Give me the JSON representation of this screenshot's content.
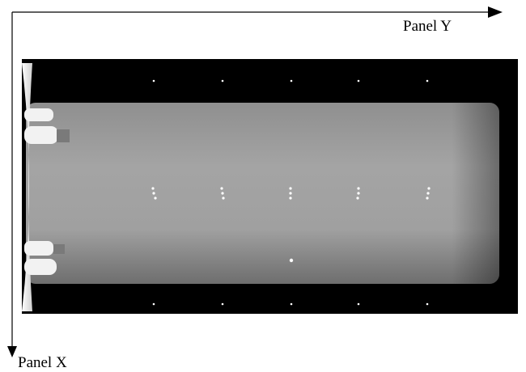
{
  "axes": {
    "y_label": "Panel Y",
    "x_label": "Panel X"
  }
}
